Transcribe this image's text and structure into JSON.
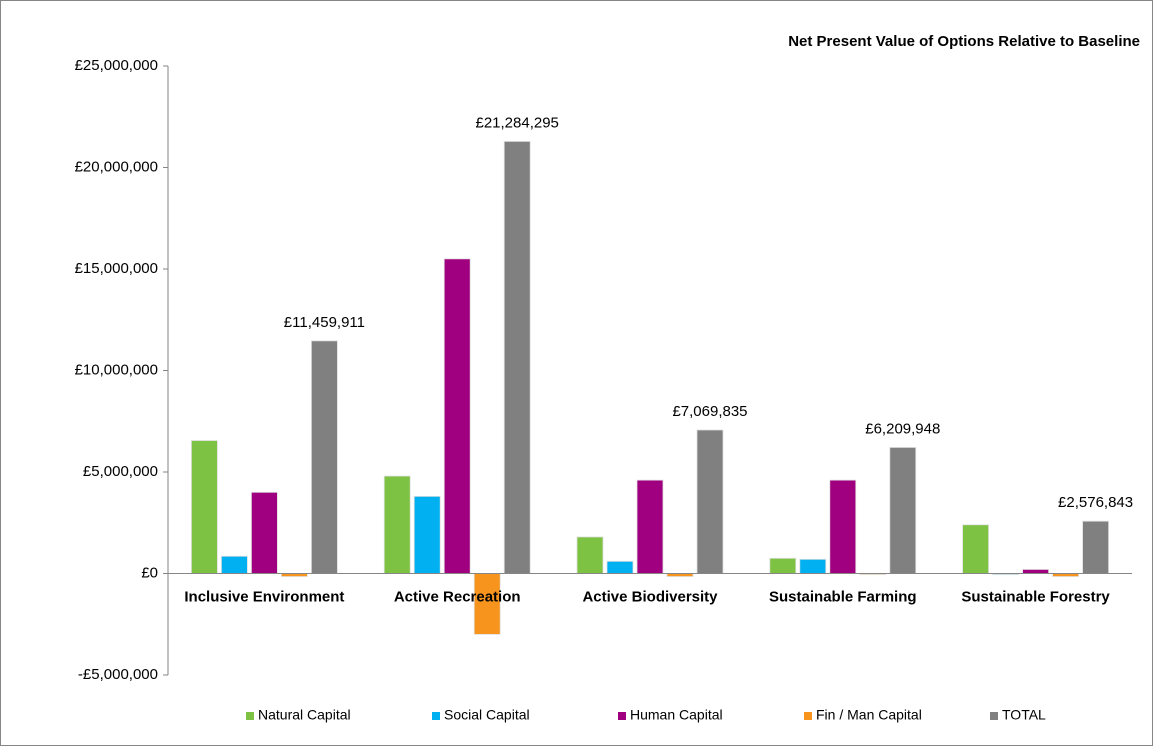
{
  "chart_data": {
    "type": "bar",
    "title": "Net Present Value of Options Relative to Baseline",
    "categories": [
      "Inclusive Environment",
      "Active Recreation",
      "Active Biodiversity",
      "Sustainable Farming",
      "Sustainable Forestry"
    ],
    "series": [
      {
        "name": "Natural Capital",
        "color": "#7dc242",
        "values": [
          6550000,
          4800000,
          1800000,
          750000,
          2400000
        ]
      },
      {
        "name": "Social Capital",
        "color": "#00b0f0",
        "values": [
          850000,
          3800000,
          600000,
          700000,
          0
        ]
      },
      {
        "name": "Human Capital",
        "color": "#a0007f",
        "values": [
          4000000,
          15500000,
          4600000,
          4600000,
          200000
        ]
      },
      {
        "name": "Fin / Man Capital",
        "color": "#f7941d",
        "values": [
          -150000,
          -3000000,
          -150000,
          -50000,
          -150000
        ]
      },
      {
        "name": "TOTAL",
        "color": "#808080",
        "values": [
          11459911,
          21284295,
          7069835,
          6209948,
          2576843
        ],
        "value_labels": [
          "£11,459,911",
          "£21,284,295",
          "£7,069,835",
          "£6,209,948",
          "£2,576,843"
        ]
      }
    ],
    "ylim": [
      -5000000,
      25000000
    ],
    "yticks": [
      {
        "value": -5000000,
        "label": "-£5,000,000"
      },
      {
        "value": 0,
        "label": "£0"
      },
      {
        "value": 5000000,
        "label": "£5,000,000"
      },
      {
        "value": 10000000,
        "label": "£10,000,000"
      },
      {
        "value": 15000000,
        "label": "£15,000,000"
      },
      {
        "value": 20000000,
        "label": "£20,000,000"
      },
      {
        "value": 25000000,
        "label": "£25,000,000"
      }
    ],
    "negative_tick_color": "#ff0000",
    "legend": "bottom",
    "grid": false
  }
}
